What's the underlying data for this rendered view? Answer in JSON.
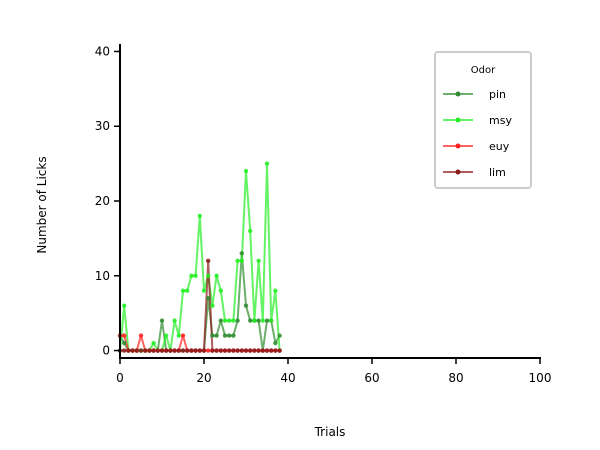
{
  "chart_data": {
    "type": "line",
    "xlabel": "Trials",
    "ylabel": "Number of Licks",
    "xlim": [
      0,
      100
    ],
    "ylim": [
      -1,
      41
    ],
    "xticks": [
      0,
      20,
      40,
      60,
      80,
      100
    ],
    "yticks": [
      0,
      10,
      20,
      30,
      40
    ],
    "grid": false,
    "legend": {
      "title": "Odor",
      "placement": "top-right"
    },
    "series": [
      {
        "name": "pin",
        "color": "#2e8b2e",
        "x": [
          0,
          1,
          2,
          3,
          4,
          5,
          6,
          7,
          8,
          9,
          10,
          11,
          12,
          13,
          14,
          15,
          16,
          17,
          18,
          19,
          20,
          21,
          22,
          23,
          24,
          25,
          26,
          27,
          28,
          29,
          30,
          31,
          32,
          33,
          34,
          35,
          36,
          37,
          38
        ],
        "y": [
          2,
          1,
          0,
          0,
          0,
          0,
          0,
          0,
          0,
          0,
          4,
          0,
          0,
          0,
          0,
          0,
          0,
          0,
          0,
          0,
          0,
          7,
          2,
          2,
          4,
          2,
          2,
          2,
          4,
          13,
          6,
          4,
          4,
          4,
          0,
          4,
          4,
          1,
          2
        ]
      },
      {
        "name": "msy",
        "color": "#22ee22",
        "x": [
          0,
          1,
          2,
          3,
          4,
          5,
          6,
          7,
          8,
          9,
          10,
          11,
          12,
          13,
          14,
          15,
          16,
          17,
          18,
          19,
          20,
          21,
          22,
          23,
          24,
          25,
          26,
          27,
          28,
          29,
          30,
          31,
          32,
          33,
          34,
          35,
          36,
          37,
          38
        ],
        "y": [
          0,
          6,
          0,
          0,
          0,
          0,
          0,
          0,
          1,
          0,
          0,
          2,
          0,
          4,
          2,
          8,
          8,
          10,
          10,
          18,
          8,
          10,
          6,
          10,
          8,
          4,
          4,
          4,
          12,
          12,
          24,
          16,
          4,
          12,
          4,
          25,
          4,
          8,
          0
        ]
      },
      {
        "name": "euy",
        "color": "#ff2020",
        "x": [
          0,
          1,
          2,
          3,
          4,
          5,
          6,
          7,
          8,
          9,
          10,
          11,
          12,
          13,
          14,
          15,
          16,
          17,
          18,
          19,
          20,
          21,
          22,
          23,
          24,
          25,
          26,
          27,
          28,
          29,
          30,
          31,
          32,
          33,
          34,
          35,
          36,
          37,
          38
        ],
        "y": [
          2,
          2,
          0,
          0,
          0,
          2,
          0,
          0,
          0,
          0,
          0,
          0,
          0,
          0,
          0,
          2,
          0,
          0,
          0,
          0,
          0,
          0,
          0,
          0,
          0,
          0,
          0,
          0,
          0,
          0,
          0,
          0,
          0,
          0,
          0,
          0,
          0,
          0,
          0
        ]
      },
      {
        "name": "lim",
        "color": "#8b1a1a",
        "x": [
          0,
          1,
          2,
          3,
          4,
          5,
          6,
          7,
          8,
          9,
          10,
          11,
          12,
          13,
          14,
          15,
          16,
          17,
          18,
          19,
          20,
          21,
          22,
          23,
          24,
          25,
          26,
          27,
          28,
          29,
          30,
          31,
          32,
          33,
          34,
          35,
          36,
          37,
          38
        ],
        "y": [
          0,
          0,
          0,
          0,
          0,
          0,
          0,
          0,
          0,
          0,
          0,
          0,
          0,
          0,
          0,
          0,
          0,
          0,
          0,
          0,
          0,
          12,
          0,
          0,
          0,
          0,
          0,
          0,
          0,
          0,
          0,
          0,
          0,
          0,
          0,
          0,
          0,
          0,
          0
        ]
      }
    ]
  }
}
